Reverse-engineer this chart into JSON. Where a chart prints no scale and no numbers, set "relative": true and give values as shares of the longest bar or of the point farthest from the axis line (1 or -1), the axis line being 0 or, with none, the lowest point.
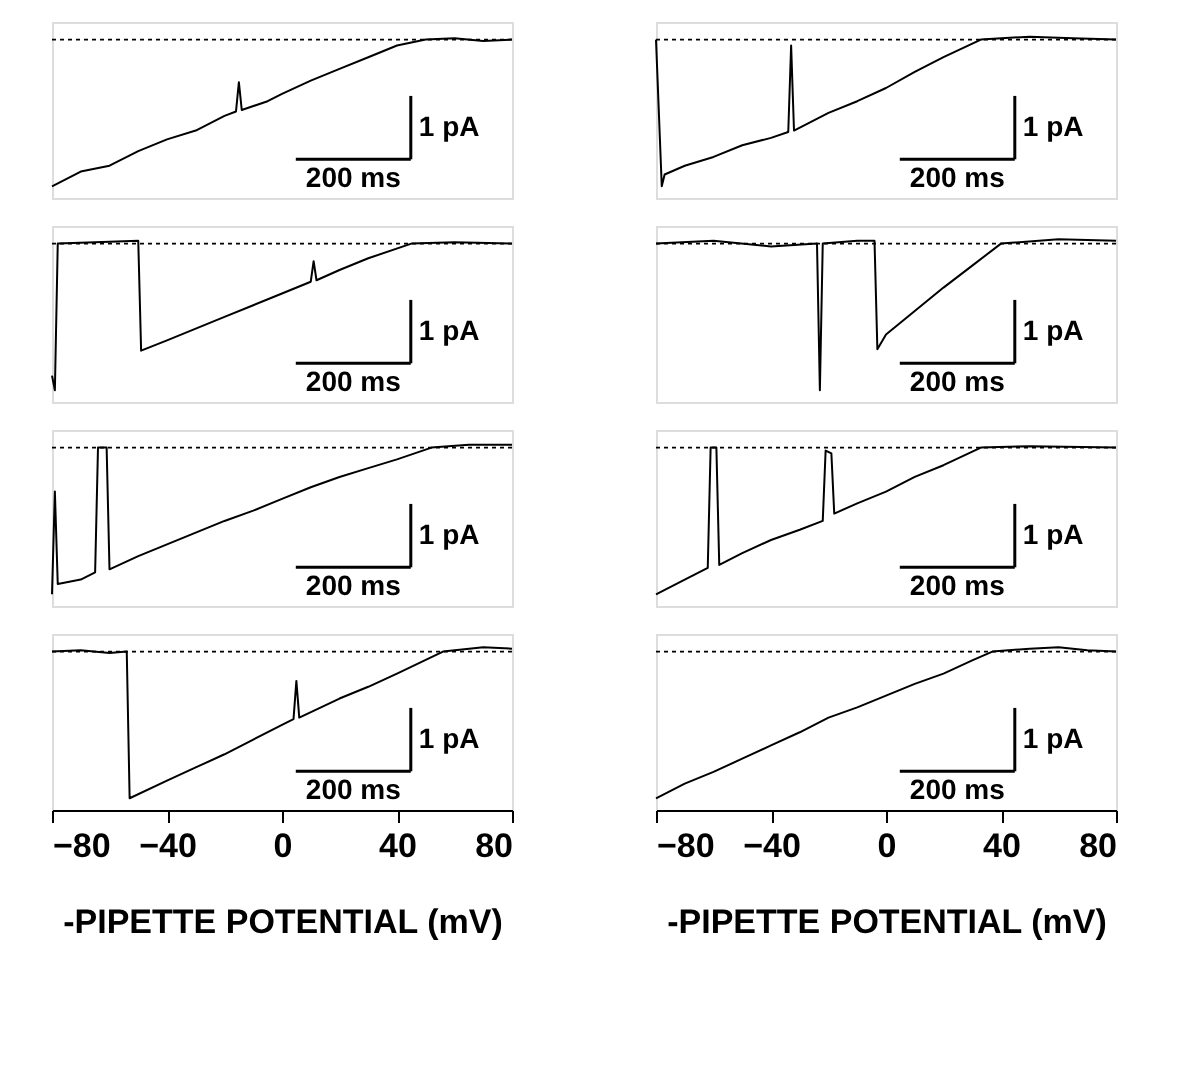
{
  "chart_data": [
    {
      "type": "line",
      "relative": true,
      "color": "#000000",
      "tick_labels": false,
      "xlim": [
        -80,
        80
      ],
      "ref_lines": [
        {
          "axis": "y",
          "value": 0,
          "line_style": "dotted"
        }
      ],
      "annotations": [
        "1 pA",
        "200 ms"
      ],
      "x": [
        -80,
        -70,
        -60,
        -50,
        -40,
        -30,
        -20,
        -16,
        -15,
        -14,
        -5,
        0,
        10,
        20,
        30,
        40,
        50,
        60,
        70,
        80
      ],
      "values": [
        -1,
        -0.9,
        -0.86,
        -0.76,
        -0.68,
        -0.62,
        -0.52,
        -0.49,
        -0.29,
        -0.48,
        -0.42,
        -0.37,
        -0.28,
        -0.2,
        -0.12,
        -0.04,
        0,
        0.01,
        -0.01,
        0
      ]
    },
    {
      "type": "line",
      "relative": true,
      "color": "#000000",
      "tick_labels": false,
      "xlim": [
        -80,
        80
      ],
      "ref_lines": [
        {
          "axis": "y",
          "value": 0,
          "line_style": "dotted"
        }
      ],
      "annotations": [
        "1 pA",
        "200 ms"
      ],
      "x": [
        -80,
        -78,
        -77,
        -70,
        -60,
        -50,
        -40,
        -34,
        -33,
        -32,
        -20,
        -10,
        0,
        10,
        20,
        33,
        50,
        65,
        80
      ],
      "values": [
        0,
        -1,
        -0.92,
        -0.86,
        -0.8,
        -0.72,
        -0.67,
        -0.63,
        -0.04,
        -0.62,
        -0.5,
        -0.42,
        -0.33,
        -0.22,
        -0.12,
        0,
        0.02,
        0.01,
        0
      ]
    },
    {
      "type": "line",
      "relative": true,
      "color": "#000000",
      "tick_labels": false,
      "xlim": [
        -80,
        80
      ],
      "ref_lines": [
        {
          "axis": "y",
          "value": 0,
          "line_style": "dotted"
        }
      ],
      "annotations": [
        "1 pA",
        "200 ms"
      ],
      "x": [
        -80,
        -79,
        -78,
        -65,
        -50,
        -49,
        -40,
        -30,
        -20,
        -10,
        0,
        10,
        11,
        12,
        20,
        30,
        45,
        60,
        80
      ],
      "values": [
        -0.9,
        -1,
        0,
        0.01,
        0.02,
        -0.73,
        -0.66,
        -0.58,
        -0.5,
        -0.42,
        -0.34,
        -0.26,
        -0.12,
        -0.25,
        -0.18,
        -0.1,
        0,
        0.01,
        0
      ]
    },
    {
      "type": "line",
      "relative": true,
      "color": "#000000",
      "tick_labels": false,
      "xlim": [
        -80,
        80
      ],
      "ref_lines": [
        {
          "axis": "y",
          "value": 0,
          "line_style": "dotted"
        }
      ],
      "annotations": [
        "1 pA",
        "200 ms"
      ],
      "x": [
        -80,
        -60,
        -40,
        -24,
        -23,
        -22,
        -10,
        -4,
        -3,
        0,
        10,
        20,
        30,
        40,
        60,
        80
      ],
      "values": [
        0,
        0.02,
        -0.02,
        0,
        -1,
        0,
        0.02,
        0.02,
        -0.72,
        -0.62,
        -0.46,
        -0.3,
        -0.15,
        0,
        0.03,
        0.02
      ]
    },
    {
      "type": "line",
      "relative": true,
      "color": "#000000",
      "tick_labels": false,
      "xlim": [
        -80,
        80
      ],
      "ref_lines": [
        {
          "axis": "y",
          "value": 0,
          "line_style": "dotted"
        }
      ],
      "annotations": [
        "1 pA",
        "200 ms"
      ],
      "x": [
        -80,
        -79,
        -78,
        -70,
        -65,
        -64,
        -61,
        -60,
        -50,
        -40,
        -30,
        -20,
        -10,
        0,
        10,
        20,
        30,
        40,
        52,
        65,
        80
      ],
      "values": [
        -1,
        -0.3,
        -0.93,
        -0.9,
        -0.85,
        0,
        0,
        -0.83,
        -0.74,
        -0.66,
        -0.58,
        -0.5,
        -0.43,
        -0.35,
        -0.27,
        -0.2,
        -0.14,
        -0.08,
        0,
        0.02,
        0.02
      ]
    },
    {
      "type": "line",
      "relative": true,
      "color": "#000000",
      "tick_labels": false,
      "xlim": [
        -80,
        80
      ],
      "ref_lines": [
        {
          "axis": "y",
          "value": 0,
          "line_style": "dotted"
        }
      ],
      "annotations": [
        "1 pA",
        "200 ms"
      ],
      "x": [
        -80,
        -70,
        -62,
        -61,
        -59,
        -58,
        -50,
        -40,
        -30,
        -22,
        -21,
        -19,
        -18,
        -10,
        0,
        10,
        20,
        33,
        50,
        80
      ],
      "values": [
        -1,
        -0.9,
        -0.82,
        0,
        0,
        -0.8,
        -0.72,
        -0.63,
        -0.56,
        -0.5,
        -0.02,
        -0.04,
        -0.45,
        -0.38,
        -0.3,
        -0.2,
        -0.12,
        0,
        0.01,
        0
      ]
    },
    {
      "type": "line",
      "relative": true,
      "color": "#000000",
      "xlim": [
        -80,
        80
      ],
      "xticks": [
        -80,
        -40,
        0,
        40,
        80
      ],
      "xlabel": "-PIPETTE POTENTIAL (mV)",
      "ref_lines": [
        {
          "axis": "y",
          "value": 0,
          "line_style": "dotted"
        }
      ],
      "annotations": [
        "1 pA",
        "200 ms"
      ],
      "x": [
        -80,
        -70,
        -60,
        -54,
        -53,
        -40,
        -30,
        -20,
        -10,
        0,
        4,
        5,
        6,
        20,
        30,
        40,
        56,
        70,
        80
      ],
      "values": [
        0,
        0.01,
        -0.01,
        0,
        -1,
        -0.88,
        -0.79,
        -0.7,
        -0.6,
        -0.5,
        -0.46,
        -0.2,
        -0.45,
        -0.32,
        -0.24,
        -0.15,
        0,
        0.03,
        0.02
      ]
    },
    {
      "type": "line",
      "relative": true,
      "color": "#000000",
      "xlim": [
        -80,
        80
      ],
      "xticks": [
        -80,
        -40,
        0,
        40,
        80
      ],
      "xlabel": "-PIPETTE POTENTIAL (mV)",
      "ref_lines": [
        {
          "axis": "y",
          "value": 0,
          "line_style": "dotted"
        }
      ],
      "annotations": [
        "1 pA",
        "200 ms"
      ],
      "x": [
        -80,
        -70,
        -60,
        -50,
        -40,
        -30,
        -20,
        -10,
        0,
        10,
        20,
        30,
        37,
        50,
        60,
        70,
        80
      ],
      "values": [
        -1,
        -0.9,
        -0.82,
        -0.73,
        -0.64,
        -0.55,
        -0.45,
        -0.38,
        -0.3,
        -0.22,
        -0.15,
        -0.06,
        0,
        0.02,
        0.03,
        0.01,
        0
      ]
    }
  ]
}
